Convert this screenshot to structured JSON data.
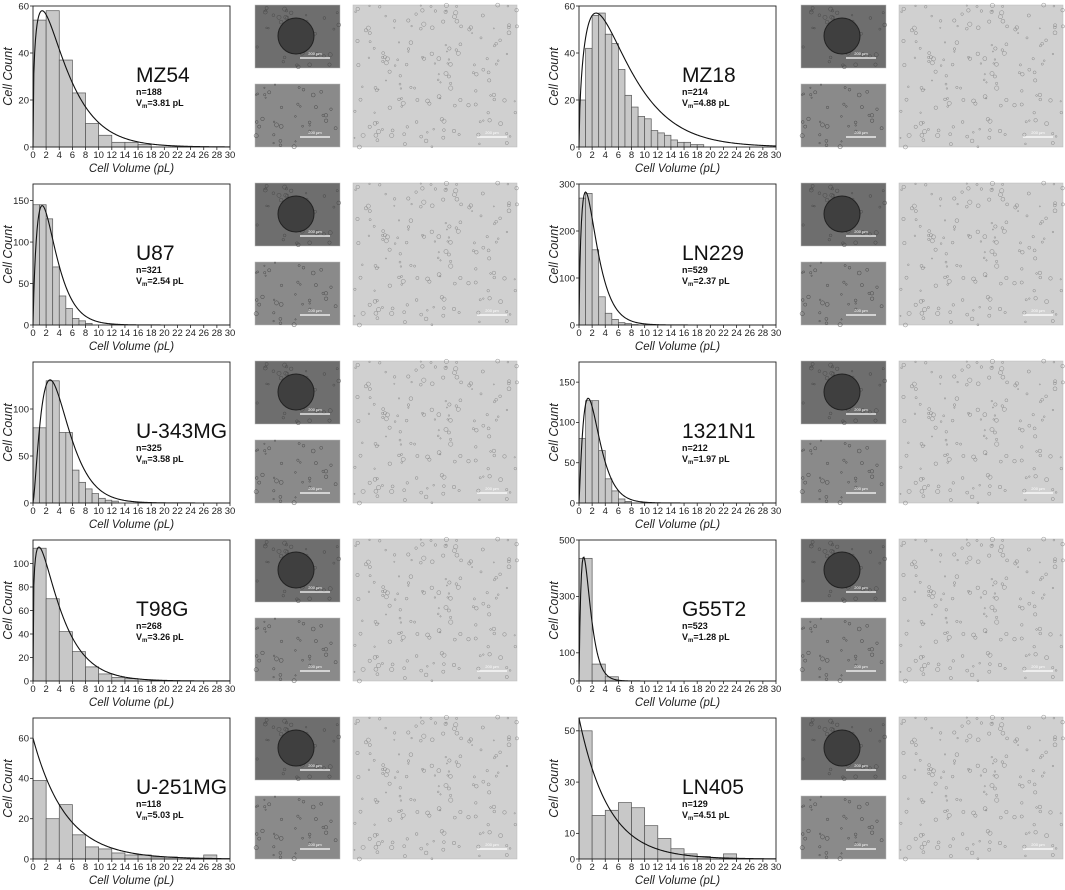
{
  "figure": {
    "xlabel": "Cell Volume (pL)",
    "ylabel": "Cell Count",
    "scale_bar_label": "200 µm"
  },
  "chart_data": [
    {
      "type": "bar",
      "name": "MZ54",
      "n_text": "n=188",
      "vm_text": "3.81 pL",
      "xlabel": "Cell Volume (pL)",
      "ylabel": "Cell Count",
      "xlim": [
        0,
        30
      ],
      "ylim": [
        0,
        60
      ],
      "xticks": [
        0,
        2,
        4,
        6,
        8,
        10,
        12,
        14,
        16,
        18,
        20,
        22,
        24,
        26,
        28,
        30
      ],
      "yticks": [
        0,
        20,
        40,
        60
      ],
      "bin_width": 2,
      "x": [
        0,
        2,
        4,
        6,
        8,
        10,
        12,
        14,
        16
      ],
      "values": [
        54,
        58,
        37,
        23,
        10,
        5,
        2,
        2,
        1
      ],
      "fit": {
        "peak_x": 1.4,
        "peak_y": 58,
        "tail": 3.4
      }
    },
    {
      "type": "bar",
      "name": "MZ18",
      "n_text": "n=214",
      "vm_text": "4.88 pL",
      "xlabel": "Cell Volume (pL)",
      "ylabel": "Cell Count",
      "xlim": [
        0,
        30
      ],
      "ylim": [
        0,
        60
      ],
      "xticks": [
        0,
        2,
        4,
        6,
        8,
        10,
        12,
        14,
        16,
        18,
        20,
        22,
        24,
        26,
        28,
        30
      ],
      "yticks": [
        0,
        20,
        40,
        60
      ],
      "bin_width": 1,
      "x": [
        0,
        1,
        2,
        3,
        4,
        5,
        6,
        7,
        8,
        9,
        10,
        11,
        12,
        13,
        14,
        15,
        16,
        17,
        18
      ],
      "values": [
        20,
        42,
        56,
        57,
        48,
        44,
        33,
        22,
        17,
        13,
        12,
        7,
        6,
        5,
        3,
        2,
        2,
        1,
        1
      ],
      "fit": {
        "peak_x": 2.6,
        "peak_y": 57,
        "tail": 4.3
      }
    },
    {
      "type": "bar",
      "name": "U87",
      "n_text": "n=321",
      "vm_text": "2.54 pL",
      "xlabel": "Cell Volume (pL)",
      "ylabel": "Cell Count",
      "xlim": [
        0,
        30
      ],
      "ylim": [
        0,
        170
      ],
      "xticks": [
        0,
        2,
        4,
        6,
        8,
        10,
        12,
        14,
        16,
        18,
        20,
        22,
        24,
        26,
        28,
        30
      ],
      "yticks": [
        0,
        50,
        100,
        150
      ],
      "bin_width": 1,
      "x": [
        0,
        1,
        2,
        3,
        4,
        5,
        6,
        7,
        8
      ],
      "values": [
        145,
        145,
        128,
        70,
        35,
        20,
        8,
        5,
        2
      ],
      "fit": {
        "peak_x": 1.4,
        "peak_y": 144,
        "tail": 1.6
      }
    },
    {
      "type": "bar",
      "name": "LN229",
      "n_text": "n=529",
      "vm_text": "2.37 pL",
      "xlabel": "Cell Volume (pL)",
      "ylabel": "Cell Count",
      "xlim": [
        0,
        30
      ],
      "ylim": [
        0,
        300
      ],
      "xticks": [
        0,
        2,
        4,
        6,
        8,
        10,
        12,
        14,
        16,
        18,
        20,
        22,
        24,
        26,
        28,
        30
      ],
      "yticks": [
        0,
        100,
        200,
        300
      ],
      "bin_width": 1,
      "x": [
        0,
        1,
        2,
        3,
        4,
        5,
        6,
        7,
        8
      ],
      "values": [
        270,
        280,
        160,
        60,
        25,
        12,
        5,
        3,
        1
      ],
      "fit": {
        "peak_x": 1.0,
        "peak_y": 283,
        "tail": 1.4
      }
    },
    {
      "type": "bar",
      "name": "U-343MG",
      "n_text": "n=325",
      "vm_text": "3.58 pL",
      "xlabel": "Cell Volume (pL)",
      "ylabel": "Cell Count",
      "xlim": [
        0,
        30
      ],
      "ylim": [
        0,
        150
      ],
      "xticks": [
        0,
        2,
        4,
        6,
        8,
        10,
        12,
        14,
        16,
        18,
        20,
        22,
        24,
        26,
        28,
        30
      ],
      "yticks": [
        0,
        50,
        100
      ],
      "bin_width": 1,
      "x": [
        0,
        1,
        2,
        3,
        4,
        5,
        6,
        7,
        8,
        9,
        10,
        11,
        12
      ],
      "values": [
        80,
        80,
        130,
        130,
        75,
        75,
        35,
        22,
        15,
        10,
        5,
        3,
        2
      ],
      "fit": {
        "peak_x": 2.6,
        "peak_y": 131,
        "tail": 1.8
      }
    },
    {
      "type": "bar",
      "name": "1321N1",
      "n_text": "n=212",
      "vm_text": "1.97 pL",
      "xlabel": "Cell Volume (pL)",
      "ylabel": "Cell Count",
      "xlim": [
        0,
        30
      ],
      "ylim": [
        0,
        175
      ],
      "xticks": [
        0,
        2,
        4,
        6,
        8,
        10,
        12,
        14,
        16,
        18,
        20,
        22,
        24,
        26,
        28,
        30
      ],
      "yticks": [
        0,
        50,
        100,
        150
      ],
      "bin_width": 1,
      "x": [
        0,
        1,
        2,
        3,
        4,
        5,
        6,
        7
      ],
      "values": [
        80,
        127,
        127,
        65,
        30,
        15,
        5,
        2
      ],
      "fit": {
        "peak_x": 1.4,
        "peak_y": 130,
        "tail": 1.2
      }
    },
    {
      "type": "bar",
      "name": "T98G",
      "n_text": "n=268",
      "vm_text": "3.26 pL",
      "xlabel": "Cell Volume (pL)",
      "ylabel": "Cell Count",
      "xlim": [
        0,
        30
      ],
      "ylim": [
        0,
        120
      ],
      "xticks": [
        0,
        2,
        4,
        6,
        8,
        10,
        12,
        14,
        16,
        18,
        20,
        22,
        24,
        26,
        28,
        30
      ],
      "yticks": [
        0,
        20,
        40,
        60,
        80,
        100
      ],
      "bin_width": 2,
      "x": [
        0,
        2,
        4,
        6,
        8,
        10,
        12,
        14
      ],
      "values": [
        113,
        70,
        42,
        25,
        12,
        6,
        3,
        2
      ],
      "fit": {
        "peak_x": 0.9,
        "peak_y": 114,
        "tail": 3.0
      }
    },
    {
      "type": "bar",
      "name": "G55T2",
      "n_text": "n=523",
      "vm_text": "1.28 pL",
      "xlabel": "Cell Volume (pL)",
      "ylabel": "Cell Count",
      "xlim": [
        0,
        30
      ],
      "ylim": [
        0,
        500
      ],
      "xticks": [
        0,
        2,
        4,
        6,
        8,
        10,
        12,
        14,
        16,
        18,
        20,
        22,
        24,
        26,
        28,
        30
      ],
      "yticks": [
        0,
        100,
        300,
        500
      ],
      "bin_width": 2,
      "x": [
        0,
        2,
        4
      ],
      "values": [
        435,
        60,
        15
      ],
      "fit": {
        "peak_x": 0.7,
        "peak_y": 440,
        "tail": 0.75
      }
    },
    {
      "type": "bar",
      "name": "U-251MG",
      "n_text": "n=118",
      "vm_text": "5.03 pL",
      "xlabel": "Cell Volume (pL)",
      "ylabel": "Cell Count",
      "xlim": [
        0,
        30
      ],
      "ylim": [
        0,
        70
      ],
      "xticks": [
        0,
        2,
        4,
        6,
        8,
        10,
        12,
        14,
        16,
        18,
        20,
        22,
        24,
        26,
        28,
        30
      ],
      "yticks": [
        0,
        20,
        40,
        60
      ],
      "bin_width": 2,
      "x": [
        0,
        2,
        4,
        6,
        8,
        10,
        12,
        14,
        16,
        18,
        20,
        22,
        24,
        26
      ],
      "values": [
        39,
        20,
        27,
        12,
        6,
        5,
        3,
        2,
        2,
        1,
        1,
        0,
        0,
        2
      ],
      "fit": {
        "peak_x": 0.0,
        "peak_y": 60,
        "tail": 5.0
      }
    },
    {
      "type": "bar",
      "name": "LN405",
      "n_text": "n=129",
      "vm_text": "4.51 pL",
      "xlabel": "Cell Volume (pL)",
      "ylabel": "Cell Count",
      "xlim": [
        0,
        30
      ],
      "ylim": [
        0,
        55
      ],
      "xticks": [
        0,
        2,
        4,
        6,
        8,
        10,
        12,
        14,
        16,
        18,
        20,
        22,
        24,
        26,
        28,
        30
      ],
      "yticks": [
        0,
        10,
        30,
        50
      ],
      "bin_width": 2,
      "x": [
        0,
        2,
        4,
        6,
        8,
        10,
        12,
        14,
        16,
        18,
        20,
        22
      ],
      "values": [
        50,
        17,
        19,
        22,
        20,
        13,
        8,
        4,
        2,
        1,
        0,
        2
      ],
      "fit": {
        "peak_x": 0.0,
        "peak_y": 55,
        "tail": 4.5
      }
    }
  ]
}
